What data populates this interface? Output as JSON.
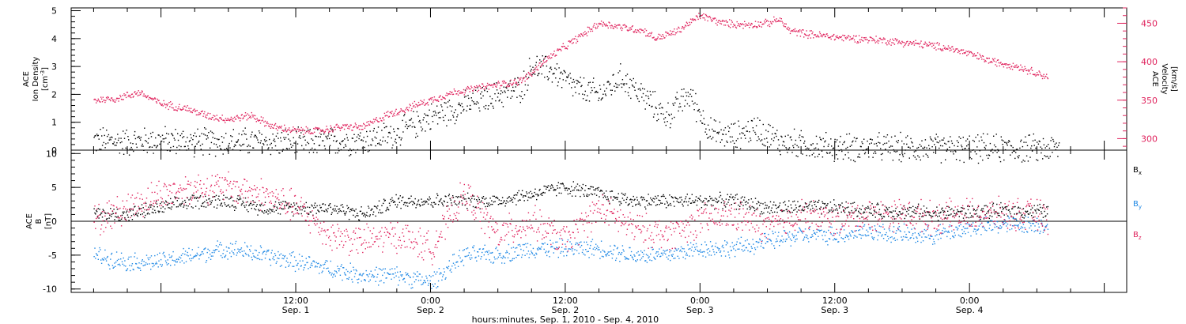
{
  "colors": {
    "black": "#000000",
    "magenta": "#e0245e",
    "blue": "#1e88e5",
    "frame": "#000000"
  },
  "chart_data": [
    {
      "type": "scatter",
      "panel": "top",
      "ylabel": "ACE\nIon Density\n[cm^-3]",
      "ylabel_lines": [
        "ACE",
        "Ion Density",
        "[cm",
        "-3",
        "]"
      ],
      "y2label_lines": [
        "ACE",
        "Velocity",
        "[km/s]"
      ],
      "ylim": [
        0,
        5.1
      ],
      "y2lim": [
        285,
        470
      ],
      "yticks": [
        0,
        1,
        2,
        3,
        4,
        5
      ],
      "y2ticks": [
        300,
        350,
        400,
        450
      ],
      "series": [
        {
          "key": "density",
          "axis": "left",
          "color": "black",
          "points": [
            [
              -6,
              0.35
            ],
            [
              -3,
              0.3
            ],
            [
              0,
              0.35
            ],
            [
              3,
              0.3
            ],
            [
              6,
              0.3
            ],
            [
              9,
              0.3
            ],
            [
              12,
              0.25
            ],
            [
              15,
              0.3
            ],
            [
              18,
              0.35
            ],
            [
              21,
              0.6
            ],
            [
              24,
              1.2
            ],
            [
              27,
              1.6
            ],
            [
              30,
              2.0
            ],
            [
              32,
              2.2
            ],
            [
              33,
              3.0
            ],
            [
              35,
              2.8
            ],
            [
              37,
              2.2
            ],
            [
              39,
              2.0
            ],
            [
              41,
              2.6
            ],
            [
              43,
              1.9
            ],
            [
              45,
              1.2
            ],
            [
              47,
              2.0
            ],
            [
              49,
              0.6
            ],
            [
              51,
              0.5
            ],
            [
              53,
              0.8
            ],
            [
              55,
              0.3
            ],
            [
              57,
              0.2
            ],
            [
              60,
              0.1
            ],
            [
              63,
              0.1
            ],
            [
              66,
              0.08
            ],
            [
              69,
              0.07
            ],
            [
              72,
              0.06
            ],
            [
              75,
              0.05
            ],
            [
              78,
              0.05
            ],
            [
              80,
              0.05
            ]
          ],
          "spread": 0.6
        },
        {
          "key": "velocity",
          "axis": "right",
          "color": "magenta",
          "points": [
            [
              -6,
              350
            ],
            [
              -4,
              352
            ],
            [
              -2,
              360
            ],
            [
              0,
              345
            ],
            [
              2,
              340
            ],
            [
              4,
              330
            ],
            [
              6,
              325
            ],
            [
              8,
              330
            ],
            [
              10,
              315
            ],
            [
              12,
              310
            ],
            [
              14,
              310
            ],
            [
              16,
              315
            ],
            [
              18,
              315
            ],
            [
              20,
              330
            ],
            [
              22,
              340
            ],
            [
              24,
              350
            ],
            [
              26,
              360
            ],
            [
              28,
              365
            ],
            [
              30,
              370
            ],
            [
              32,
              375
            ],
            [
              33,
              385
            ],
            [
              34,
              400
            ],
            [
              35,
              410
            ],
            [
              36,
              420
            ],
            [
              37,
              430
            ],
            [
              39,
              450
            ],
            [
              41,
              445
            ],
            [
              43,
              440
            ],
            [
              44,
              430
            ],
            [
              46,
              440
            ],
            [
              48,
              460
            ],
            [
              50,
              450
            ],
            [
              52,
              448
            ],
            [
              54,
              450
            ],
            [
              55,
              455
            ],
            [
              56,
              440
            ],
            [
              58,
              435
            ],
            [
              60,
              432
            ],
            [
              62,
              430
            ],
            [
              64,
              428
            ],
            [
              66,
              425
            ],
            [
              68,
              422
            ],
            [
              70,
              418
            ],
            [
              72,
              410
            ],
            [
              74,
              400
            ],
            [
              76,
              395
            ],
            [
              78,
              385
            ],
            [
              79,
              380
            ]
          ],
          "spread": 6
        }
      ]
    },
    {
      "type": "scatter",
      "panel": "bottom",
      "ylabel_lines": [
        "ACE",
        "B",
        "[nT]"
      ],
      "ylim": [
        -10.5,
        10.5
      ],
      "yticks": [
        -10,
        -5,
        0,
        5,
        10
      ],
      "legend": [
        "B",
        "B",
        "B"
      ],
      "legend_subs": [
        "x",
        "y",
        "z"
      ],
      "series": [
        {
          "key": "Bx",
          "color": "black",
          "points": [
            [
              -6,
              1
            ],
            [
              -3,
              1
            ],
            [
              0,
              2
            ],
            [
              3,
              3
            ],
            [
              6,
              3
            ],
            [
              9,
              2
            ],
            [
              12,
              2
            ],
            [
              15,
              2
            ],
            [
              18,
              1
            ],
            [
              21,
              3
            ],
            [
              24,
              3
            ],
            [
              27,
              3
            ],
            [
              30,
              3
            ],
            [
              33,
              4
            ],
            [
              36,
              5
            ],
            [
              39,
              4
            ],
            [
              42,
              3
            ],
            [
              45,
              3
            ],
            [
              48,
              3
            ],
            [
              51,
              3
            ],
            [
              54,
              2
            ],
            [
              57,
              2
            ],
            [
              60,
              2
            ],
            [
              63,
              1.5
            ],
            [
              66,
              1.5
            ],
            [
              69,
              1.2
            ],
            [
              72,
              1.3
            ],
            [
              75,
              1.5
            ],
            [
              78,
              1.5
            ],
            [
              79,
              1.5
            ]
          ],
          "spread": 1.3
        },
        {
          "key": "By",
          "color": "blue",
          "points": [
            [
              -6,
              -5
            ],
            [
              -3,
              -6
            ],
            [
              0,
              -6
            ],
            [
              3,
              -5
            ],
            [
              6,
              -4
            ],
            [
              9,
              -5
            ],
            [
              12,
              -6
            ],
            [
              15,
              -7
            ],
            [
              18,
              -8
            ],
            [
              21,
              -8
            ],
            [
              24,
              -9
            ],
            [
              27,
              -5
            ],
            [
              30,
              -5
            ],
            [
              33,
              -4
            ],
            [
              36,
              -4
            ],
            [
              39,
              -4
            ],
            [
              42,
              -5
            ],
            [
              45,
              -5
            ],
            [
              48,
              -4
            ],
            [
              51,
              -4
            ],
            [
              54,
              -3
            ],
            [
              57,
              -2
            ],
            [
              60,
              -2
            ],
            [
              63,
              -1.5
            ],
            [
              66,
              -2
            ],
            [
              69,
              -2
            ],
            [
              72,
              -1
            ],
            [
              75,
              -0.5
            ],
            [
              78,
              -0.5
            ],
            [
              79,
              -0.5
            ]
          ],
          "spread": 1.6
        },
        {
          "key": "Bz",
          "color": "magenta",
          "points": [
            [
              -6,
              0
            ],
            [
              -3,
              2
            ],
            [
              0,
              4
            ],
            [
              3,
              5
            ],
            [
              6,
              5
            ],
            [
              9,
              4
            ],
            [
              12,
              2
            ],
            [
              15,
              -2
            ],
            [
              18,
              -3
            ],
            [
              21,
              -2
            ],
            [
              24,
              -4
            ],
            [
              27,
              4
            ],
            [
              30,
              -2
            ],
            [
              33,
              0
            ],
            [
              36,
              -3
            ],
            [
              39,
              2
            ],
            [
              42,
              -1
            ],
            [
              45,
              -2
            ],
            [
              48,
              0
            ],
            [
              51,
              1
            ],
            [
              54,
              -1
            ],
            [
              57,
              1
            ],
            [
              60,
              0
            ],
            [
              63,
              1
            ],
            [
              66,
              1
            ],
            [
              69,
              0.5
            ],
            [
              72,
              1
            ],
            [
              75,
              1
            ],
            [
              78,
              1
            ],
            [
              79,
              0
            ]
          ],
          "spread": 2.8
        }
      ]
    }
  ],
  "xaxis": {
    "xlim": [
      -8,
      86
    ],
    "major_ticks": [
      {
        "x": 12,
        "time": "12:00",
        "date": "Sep. 1"
      },
      {
        "x": 24,
        "time": "0:00",
        "date": "Sep. 2"
      },
      {
        "x": 36,
        "time": "12:00",
        "date": "Sep. 2"
      },
      {
        "x": 48,
        "time": "0:00",
        "date": "Sep. 3"
      },
      {
        "x": 60,
        "time": "12:00",
        "date": "Sep. 3"
      },
      {
        "x": 72,
        "time": "0:00",
        "date": "Sep. 4"
      }
    ],
    "label": "hours:minutes, Sep.  1, 2010 - Sep.  4, 2010"
  }
}
